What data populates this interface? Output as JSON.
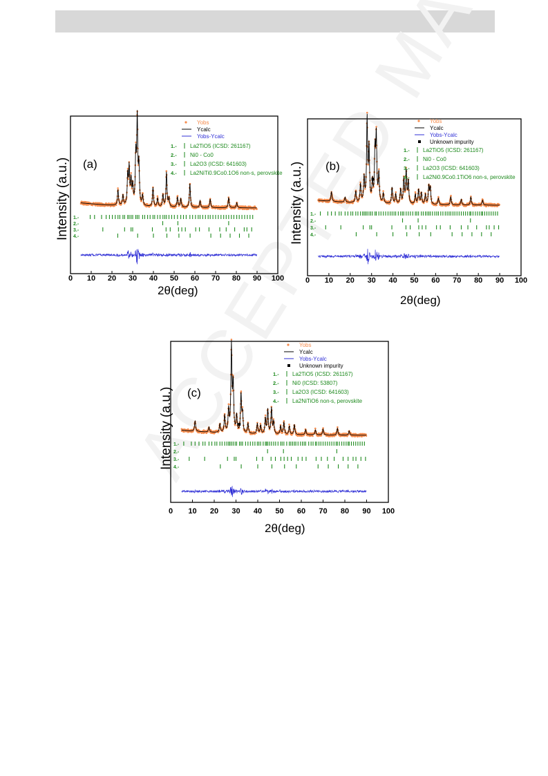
{
  "page": {
    "header_bar": ""
  },
  "watermark": "ACCEPTED MANUSCRIPT",
  "colors": {
    "obs": "#f58b4c",
    "calc": "#000000",
    "diff": "#2f2fd6",
    "bragg": "#1e8a1e",
    "background": "#ffffff"
  },
  "chart_data": [
    {
      "type": "line",
      "panel_label": "(a)",
      "xlabel": "2θ(deg)",
      "ylabel": "Intensity (a.u.)",
      "xlim": [
        0,
        100
      ],
      "xticks": [
        0,
        10,
        20,
        30,
        40,
        50,
        60,
        70,
        80,
        90,
        100
      ],
      "grid": false,
      "legend_position": "top-right",
      "legend": {
        "obs": "Yobs",
        "calc": "Ycalc",
        "diff": "Yobs-Ycalc",
        "impurity": ""
      },
      "phase_rows": [
        "1.-",
        "2.-",
        "3.-",
        "4.-"
      ],
      "phases": [
        {
          "num": "1.-",
          "name": "La2TiO5 (ICSD: 261167)"
        },
        {
          "num": "2.-",
          "name": "Ni0 - Co0"
        },
        {
          "num": "3.-",
          "name": "La2O3 (ICSD: 641603)"
        },
        {
          "num": "4.-",
          "name": "La2NiTi0.9Co0.1O6 non-s, perovskite"
        }
      ],
      "peaks": [
        [
          22.9,
          0.18
        ],
        [
          25.3,
          0.12
        ],
        [
          27.6,
          0.35
        ],
        [
          28.3,
          0.42
        ],
        [
          29.2,
          0.28
        ],
        [
          30.0,
          0.22
        ],
        [
          31.5,
          0.55
        ],
        [
          32.2,
          1.0
        ],
        [
          33.0,
          0.45
        ],
        [
          34.8,
          0.12
        ],
        [
          39.8,
          0.22
        ],
        [
          42.0,
          0.1
        ],
        [
          44.6,
          0.14
        ],
        [
          46.3,
          0.4
        ],
        [
          47.5,
          0.1
        ],
        [
          51.6,
          0.12
        ],
        [
          53.2,
          0.1
        ],
        [
          57.6,
          0.28
        ],
        [
          62.5,
          0.08
        ],
        [
          67.4,
          0.1
        ],
        [
          76.3,
          0.12
        ],
        [
          80.2,
          0.06
        ]
      ],
      "noise_seed": 3,
      "impurity_x": [],
      "bragg": [
        [
          9.5,
          11.6,
          15.0,
          17.2,
          18.8,
          20.2,
          21.6,
          22.9,
          23.8,
          25.3,
          26.1,
          27.6,
          28.3,
          29.2,
          30.0,
          31.5,
          32.2,
          33.0,
          34.8,
          35.8,
          37.2,
          38.4,
          39.8,
          40.6,
          42.0,
          43.2,
          44.6,
          45.5,
          46.3,
          47.5,
          48.8,
          50.1,
          51.6,
          53.2,
          54.5,
          55.8,
          57.6,
          58.9,
          60.3,
          61.6,
          62.5,
          63.8,
          65.1,
          66.4,
          67.4,
          68.7,
          70.0,
          71.3,
          72.6,
          73.9,
          75.1,
          76.3,
          77.6,
          78.8,
          80.2,
          81.4,
          82.7,
          84.0,
          85.3,
          86.6,
          87.9
        ],
        [
          44.5,
          51.8,
          76.3
        ],
        [
          15.6,
          26.1,
          29.2,
          30.0,
          39.5,
          46.1,
          48.1,
          52.1,
          53.7,
          55.4,
          60.4,
          62.2,
          66.8,
          72.0,
          75.1,
          79.2,
          83.8,
          85.1,
          87.4
        ],
        [
          22.8,
          32.4,
          40.0,
          46.5,
          52.3,
          57.7,
          67.7,
          72.4,
          77.0,
          81.5,
          86.0
        ]
      ]
    },
    {
      "type": "line",
      "panel_label": "(b)",
      "xlabel": "2θ(deg)",
      "ylabel": "Intensity (a.u.)",
      "xlim": [
        0,
        100
      ],
      "xticks": [
        0,
        10,
        20,
        30,
        40,
        50,
        60,
        70,
        80,
        90,
        100
      ],
      "grid": false,
      "legend_position": "top-right",
      "legend": {
        "obs": "Yobs",
        "calc": "Ycalc",
        "diff": "Yobs-Ycalc",
        "impurity": "Unknown impurity"
      },
      "phase_rows": [
        "1.-",
        "2.-",
        "3.-",
        "4.-"
      ],
      "phases": [
        {
          "num": "1.-",
          "name": "La2TiO5 (ICSD: 261167)"
        },
        {
          "num": "2.-",
          "name": "Ni0 - Co0"
        },
        {
          "num": "3.-",
          "name": "La2O3 (ICSD: 641603)"
        },
        {
          "num": "4.-",
          "name": "La2Ni0.9Co0.1TiO6 non-s, perovskite"
        }
      ],
      "peaks": [
        [
          11.2,
          0.12
        ],
        [
          17.6,
          0.06
        ],
        [
          22.6,
          0.14
        ],
        [
          24.8,
          0.22
        ],
        [
          26.5,
          0.3
        ],
        [
          27.9,
          1.0
        ],
        [
          28.8,
          0.65
        ],
        [
          30.4,
          0.25
        ],
        [
          31.6,
          0.6
        ],
        [
          32.2,
          0.8
        ],
        [
          33.4,
          0.35
        ],
        [
          35.5,
          0.12
        ],
        [
          39.6,
          0.2
        ],
        [
          41.3,
          0.12
        ],
        [
          43.6,
          0.18
        ],
        [
          45.1,
          0.3
        ],
        [
          46.2,
          0.4
        ],
        [
          47.2,
          0.28
        ],
        [
          50.5,
          0.12
        ],
        [
          52.0,
          0.18
        ],
        [
          53.3,
          0.14
        ],
        [
          55.2,
          0.12
        ],
        [
          56.8,
          0.22
        ],
        [
          57.5,
          0.2
        ],
        [
          61.3,
          0.08
        ],
        [
          67.1,
          0.1
        ],
        [
          72.0,
          0.07
        ],
        [
          76.5,
          0.1
        ],
        [
          82.0,
          0.06
        ]
      ],
      "noise_seed": 7,
      "impurity_x": [
        30.6
      ],
      "bragg": [
        [
          6.0,
          9.5,
          11.2,
          13.0,
          14.8,
          15.8,
          17.6,
          18.9,
          20.3,
          21.2,
          22.6,
          23.6,
          24.8,
          25.8,
          26.5,
          27.2,
          27.9,
          28.8,
          29.6,
          30.4,
          31.6,
          32.2,
          33.4,
          34.4,
          35.5,
          36.6,
          37.7,
          38.7,
          39.6,
          40.5,
          41.3,
          42.5,
          43.6,
          44.4,
          45.1,
          46.2,
          47.2,
          48.2,
          49.3,
          50.5,
          51.2,
          52.0,
          53.3,
          54.2,
          55.2,
          56.0,
          56.8,
          57.5,
          58.5,
          59.6,
          60.5,
          61.3,
          62.4,
          63.4,
          64.5,
          65.4,
          66.3,
          67.1,
          68.1,
          69.0,
          70.0,
          71.0,
          72.0,
          73.0,
          74.0,
          75.0,
          76.0,
          76.5,
          77.5,
          78.6,
          79.6,
          80.6,
          81.5,
          82.0,
          83.0,
          84.0,
          85.0,
          86.0,
          87.0,
          88.0,
          89.0
        ],
        [
          44.5,
          51.8,
          76.3
        ],
        [
          8.5,
          15.6,
          26.1,
          29.2,
          30.0,
          39.5,
          46.1,
          48.1,
          52.1,
          53.7,
          55.4,
          60.4,
          62.2,
          66.8,
          72.0,
          75.1,
          79.2,
          83.8,
          85.1,
          87.4,
          89.5
        ],
        [
          22.8,
          32.4,
          40.0,
          46.5,
          52.3,
          57.7,
          67.7,
          72.4,
          77.0,
          81.5,
          86.0
        ]
      ]
    },
    {
      "type": "line",
      "panel_label": "(c)",
      "xlabel": "2θ(deg)",
      "ylabel": "Intensity (a.u.)",
      "xlim": [
        0,
        100
      ],
      "xticks": [
        0,
        10,
        20,
        30,
        40,
        50,
        60,
        70,
        80,
        90,
        100
      ],
      "grid": false,
      "legend_position": "top-right",
      "legend": {
        "obs": "Yobs",
        "calc": "Ycalc",
        "diff": "Yobs-Ycalc",
        "impurity": "Unknown impurity"
      },
      "phase_rows": [
        "1.-",
        "2.-",
        "3.-",
        "4.-"
      ],
      "phases": [
        {
          "num": "1.-",
          "name": "La2TiO5 (ICSD: 261167)"
        },
        {
          "num": "2.-",
          "name": "Ni0 (ICSD: 53807)"
        },
        {
          "num": "3.-",
          "name": "La2O3 (ICSD: 641603)"
        },
        {
          "num": "4.-",
          "name": "La2NiTiO6 non-s, perovskite"
        }
      ],
      "peaks": [
        [
          11.2,
          0.12
        ],
        [
          17.6,
          0.06
        ],
        [
          22.6,
          0.1
        ],
        [
          24.8,
          0.2
        ],
        [
          26.6,
          0.26
        ],
        [
          27.9,
          1.0
        ],
        [
          28.7,
          0.55
        ],
        [
          30.3,
          0.2
        ],
        [
          32.3,
          0.45
        ],
        [
          33.0,
          0.22
        ],
        [
          35.5,
          0.12
        ],
        [
          39.8,
          0.12
        ],
        [
          41.3,
          0.1
        ],
        [
          43.5,
          0.18
        ],
        [
          44.6,
          0.28
        ],
        [
          46.3,
          0.3
        ],
        [
          47.3,
          0.14
        ],
        [
          50.5,
          0.1
        ],
        [
          52.0,
          0.14
        ],
        [
          54.5,
          0.1
        ],
        [
          56.8,
          0.12
        ],
        [
          62.0,
          0.06
        ],
        [
          66.5,
          0.06
        ],
        [
          70.0,
          0.07
        ],
        [
          76.6,
          0.08
        ],
        [
          82.0,
          0.05
        ]
      ],
      "noise_seed": 11,
      "impurity_x": [
        31.5
      ],
      "bragg": [
        [
          6.0,
          9.5,
          11.2,
          13.0,
          14.8,
          15.8,
          17.6,
          18.9,
          20.3,
          21.2,
          22.6,
          23.6,
          24.8,
          25.8,
          26.6,
          27.2,
          27.9,
          28.7,
          29.6,
          30.3,
          31.6,
          32.3,
          33.0,
          34.4,
          35.5,
          36.6,
          37.7,
          38.7,
          39.8,
          40.5,
          41.3,
          42.5,
          43.5,
          44.0,
          44.6,
          45.4,
          46.3,
          47.3,
          48.2,
          49.3,
          50.5,
          51.2,
          52.0,
          53.3,
          54.5,
          55.2,
          56.0,
          56.8,
          57.5,
          58.5,
          59.6,
          60.5,
          61.3,
          62.0,
          63.4,
          64.5,
          65.4,
          66.5,
          67.1,
          68.1,
          69.0,
          70.0,
          71.0,
          72.0,
          73.0,
          74.0,
          75.0,
          76.0,
          76.6,
          77.5,
          78.6,
          79.6,
          80.6,
          81.5,
          82.0,
          83.0,
          84.0,
          85.0,
          86.0,
          87.0,
          88.0,
          89.0
        ],
        [
          44.5,
          51.8,
          76.3
        ],
        [
          8.5,
          15.6,
          26.1,
          29.2,
          30.0,
          39.5,
          42.2,
          46.1,
          48.1,
          50.6,
          52.1,
          53.7,
          55.4,
          58.5,
          60.4,
          62.2,
          66.8,
          69.2,
          72.0,
          75.1,
          79.2,
          81.5,
          83.8,
          85.1,
          87.4,
          89.5
        ],
        [
          22.8,
          32.4,
          40.0,
          46.5,
          52.3,
          57.7,
          67.7,
          72.4,
          77.0,
          81.5,
          86.0
        ]
      ]
    }
  ]
}
